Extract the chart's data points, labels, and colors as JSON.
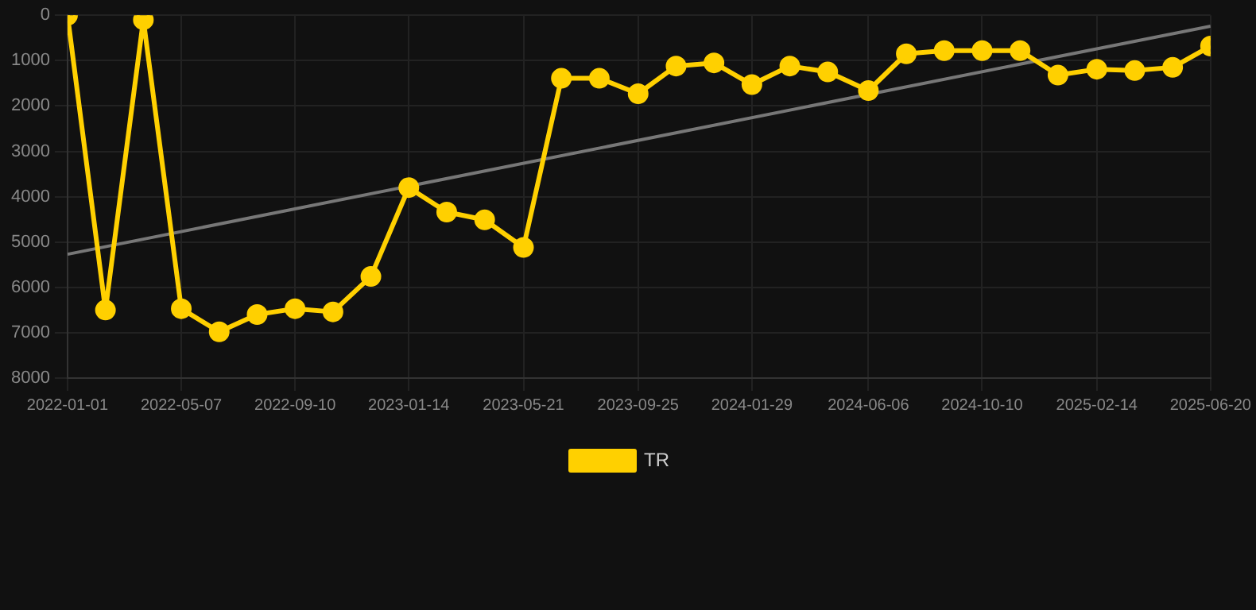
{
  "chart_data": {
    "type": "line",
    "x": [
      "2022-01-01",
      "2022-02-12",
      "2022-03-26",
      "2022-05-07",
      "2022-06-18",
      "2022-07-30",
      "2022-09-10",
      "2022-10-22",
      "2022-12-03",
      "2023-01-14",
      "2023-02-25",
      "2023-04-08",
      "2023-05-21",
      "2023-07-02",
      "2023-08-13",
      "2023-09-25",
      "2023-11-06",
      "2023-12-18",
      "2024-01-29",
      "2024-03-11",
      "2024-04-22",
      "2024-06-06",
      "2024-07-18",
      "2024-08-29",
      "2024-10-10",
      "2024-11-21",
      "2025-01-02",
      "2025-02-14",
      "2025-03-28",
      "2025-05-09",
      "2025-06-20"
    ],
    "series": [
      {
        "name": "TR",
        "color": "#ffd000",
        "marker": "circle",
        "values": [
          0,
          6500,
          100,
          6470,
          6980,
          6600,
          6470,
          6540,
          5760,
          3800,
          4340,
          4510,
          5120,
          1390,
          1390,
          1730,
          1120,
          1050,
          1530,
          1120,
          1250,
          1660,
          850,
          780,
          780,
          780,
          1320,
          1190,
          1220,
          1150,
          680
        ]
      },
      {
        "type": "line",
        "color": "#777777",
        "marker": "none",
        "x": [
          "2022-01-01",
          "2025-06-20"
        ],
        "values": [
          5270,
          240
        ]
      }
    ],
    "xlim": [
      "2022-01-01",
      "2025-06-20"
    ],
    "xticks": [
      "2022-01-01",
      "2022-05-07",
      "2022-09-10",
      "2023-01-14",
      "2023-05-21",
      "2023-09-25",
      "2024-01-29",
      "2024-06-06",
      "2024-10-10",
      "2025-02-14",
      "2025-06-20"
    ],
    "ylim": [
      8000,
      0
    ],
    "yticks": [
      0,
      1000,
      2000,
      3000,
      4000,
      5000,
      6000,
      7000,
      8000
    ],
    "grid": true,
    "legend": "bottom",
    "line_style": "solid"
  }
}
